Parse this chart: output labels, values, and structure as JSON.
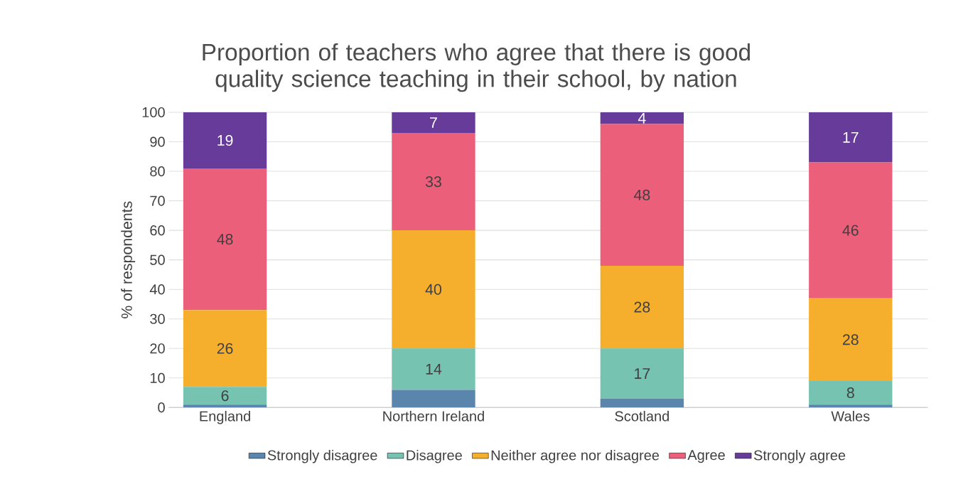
{
  "chart_data": {
    "type": "bar",
    "stacked": true,
    "title": "Proportion of teachers who agree that there is good quality science teaching in their school, by nation",
    "ylabel": "% of respondents",
    "categories": [
      "England",
      "Northern Ireland",
      "Scotland",
      "Wales"
    ],
    "series": [
      {
        "name": "Strongly disagree",
        "color": "#5a86ad",
        "values": [
          1,
          6,
          3,
          1
        ],
        "value_labels": [
          null,
          null,
          null,
          null
        ]
      },
      {
        "name": "Disagree",
        "color": "#76c3b2",
        "values": [
          6,
          14,
          17,
          8
        ],
        "value_labels": [
          "6",
          "14",
          "17",
          "8"
        ]
      },
      {
        "name": "Neither agree nor disagree",
        "color": "#f6ae2d",
        "values": [
          26,
          40,
          28,
          28
        ],
        "value_labels": [
          "26",
          "40",
          "28",
          "28"
        ]
      },
      {
        "name": "Agree",
        "color": "#ec5f7b",
        "values": [
          48,
          33,
          48,
          46
        ],
        "value_labels": [
          "48",
          "33",
          "48",
          "46"
        ]
      },
      {
        "name": "Strongly agree",
        "color": "#663b99",
        "values": [
          19,
          7,
          4,
          17
        ],
        "value_labels": [
          "19",
          "7",
          "4",
          "17"
        ]
      }
    ],
    "ylim": [
      0,
      100
    ],
    "yticks": [
      0,
      10,
      20,
      30,
      40,
      50,
      60,
      70,
      80,
      90,
      100
    ],
    "grid": "y",
    "legend": "bottom"
  }
}
